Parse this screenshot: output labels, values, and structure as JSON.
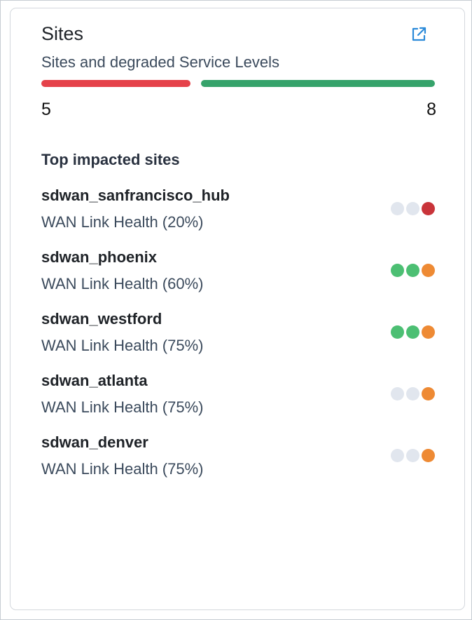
{
  "card": {
    "title": "Sites",
    "subtitle": "Sites and degraded Service Levels",
    "external_link_icon": "external-link-icon"
  },
  "summary": {
    "degraded_count": "5",
    "healthy_count": "8",
    "degraded_color": "#e5424a",
    "healthy_color": "#36a36b"
  },
  "top_sites": {
    "heading": "Top impacted sites",
    "items": [
      {
        "name": "sdwan_sanfrancisco_hub",
        "metric": "WAN Link Health (20%)",
        "dots": [
          "#e1e6ee",
          "#e1e6ee",
          "#c9343a"
        ]
      },
      {
        "name": "sdwan_phoenix",
        "metric": "WAN Link Health (60%)",
        "dots": [
          "#4cbf73",
          "#4cbf73",
          "#ee8a34"
        ]
      },
      {
        "name": "sdwan_westford",
        "metric": "WAN Link Health (75%)",
        "dots": [
          "#4cbf73",
          "#4cbf73",
          "#ee8a34"
        ]
      },
      {
        "name": "sdwan_atlanta",
        "metric": "WAN Link Health (75%)",
        "dots": [
          "#e1e6ee",
          "#e1e6ee",
          "#ee8a34"
        ]
      },
      {
        "name": "sdwan_denver",
        "metric": "WAN Link Health (75%)",
        "dots": [
          "#e1e6ee",
          "#e1e6ee",
          "#ee8a34"
        ]
      }
    ]
  },
  "colors": {
    "link_accent": "#2b8ad9"
  }
}
